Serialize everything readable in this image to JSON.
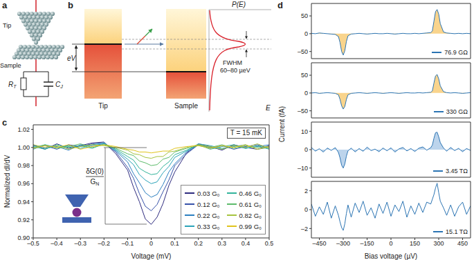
{
  "chart_data": [
    {
      "type": "line",
      "panel": "c",
      "x_label": "Voltage (mV)",
      "y_label": "Normalized dI/dV",
      "x": [
        -0.5,
        -0.45,
        -0.4,
        -0.35,
        -0.3,
        -0.25,
        -0.2,
        -0.15,
        -0.1,
        -0.075,
        -0.05,
        -0.025,
        0,
        0.025,
        0.05,
        0.075,
        0.1,
        0.15,
        0.2,
        0.25,
        0.3,
        0.35,
        0.4,
        0.45,
        0.5
      ],
      "xlim": [
        -0.5,
        0.5
      ],
      "xticks": [
        {
          "value": -0.5,
          "label": "–0.5"
        },
        {
          "value": -0.4,
          "label": "–0.4"
        },
        {
          "value": -0.3,
          "label": "–0.3"
        },
        {
          "value": -0.2,
          "label": "–0.2"
        },
        {
          "value": -0.1,
          "label": "–0.1"
        },
        0,
        0.1,
        0.2,
        0.3,
        0.4,
        0.5
      ],
      "ylim": [
        0.9,
        1.025
      ],
      "yticks": [
        {
          "value": 0.9,
          "label": "0.90"
        },
        0.92,
        0.94,
        0.96,
        0.98,
        {
          "value": 1,
          "label": "1.00"
        },
        1.02
      ],
      "legend": "lower right",
      "annotations": {
        "temperature": "T = 15 mK",
        "depth_numerator": "δG(0)",
        "depth_denominator": "G",
        "depth_denominator_subscript": "N"
      },
      "series": [
        {
          "name": "0.03 G₀",
          "color": "#2d2a7e",
          "values": [
            1.003,
            0.998,
            1.004,
            0.999,
            1.002,
            1.005,
            1.006,
            0.993,
            0.975,
            0.956,
            0.94,
            0.921,
            0.915,
            0.923,
            0.938,
            0.958,
            0.973,
            0.994,
            1.004,
            1.001,
            0.997,
            1.003,
            1.0,
            0.998,
            1.002
          ]
        },
        {
          "name": "0.12 G₀",
          "color": "#3651a8",
          "values": [
            0.999,
            1.002,
            0.998,
            1.003,
            1.001,
            1.004,
            1.005,
            0.995,
            0.978,
            0.966,
            0.949,
            0.935,
            0.93,
            0.937,
            0.951,
            0.964,
            0.98,
            0.993,
            1.003,
            0.999,
            1.002,
            0.998,
            1.001,
            1.003,
            0.999
          ]
        },
        {
          "name": "0.22 G₀",
          "color": "#2c7fc0",
          "values": [
            1.002,
            0.999,
            1.001,
            0.997,
            1.003,
            1.002,
            1.004,
            0.996,
            0.984,
            0.971,
            0.961,
            0.95,
            0.945,
            0.948,
            0.959,
            0.973,
            0.982,
            0.995,
            1.003,
            1.0,
            0.998,
            1.002,
            0.999,
            1.001,
            1.003
          ]
        },
        {
          "name": "0.33 G₀",
          "color": "#2aa3b8",
          "values": [
            0.998,
            1.003,
            1.0,
            1.002,
            0.999,
            1.003,
            1.005,
            0.997,
            0.987,
            0.981,
            0.97,
            0.964,
            0.96,
            0.962,
            0.972,
            0.979,
            0.989,
            0.996,
            1.004,
            1.002,
            0.999,
            1.001,
            1.003,
            0.998,
            1.0
          ]
        },
        {
          "name": "0.46 G₀",
          "color": "#31b39a",
          "values": [
            1.001,
            0.998,
            1.003,
            1.0,
            1.002,
            0.999,
            1.004,
            0.998,
            0.99,
            0.986,
            0.977,
            0.973,
            0.97,
            0.971,
            0.979,
            0.984,
            0.992,
            0.997,
            1.003,
            0.998,
            1.001,
            1.003,
            0.999,
            1.002,
            0.998
          ]
        },
        {
          "name": "0.61 G₀",
          "color": "#5cbb6a",
          "values": [
            1.0,
            1.003,
            0.999,
            1.001,
            1.004,
            1.0,
            1.003,
            0.999,
            0.993,
            0.991,
            0.985,
            0.983,
            0.98,
            0.981,
            0.987,
            0.989,
            0.995,
            0.999,
            1.002,
            1.0,
            1.003,
            0.999,
            1.002,
            1.0,
            1.001
          ]
        },
        {
          "name": "0.82 G₀",
          "color": "#a6c33d",
          "values": [
            1.003,
            1.0,
            1.002,
            0.998,
            1.001,
            1.003,
            1.002,
            1.0,
            0.997,
            0.993,
            0.992,
            0.989,
            0.988,
            0.99,
            0.99,
            0.995,
            0.996,
            1.0,
            1.003,
            1.001,
            0.998,
            1.002,
            1.0,
            1.004,
            0.999
          ]
        },
        {
          "name": "0.99 G₀",
          "color": "#e0c31a",
          "values": [
            0.999,
            1.002,
            1.0,
            1.003,
            0.998,
            1.001,
            1.003,
            1.001,
            0.998,
            0.997,
            0.995,
            0.995,
            0.994,
            0.995,
            0.996,
            0.996,
            0.999,
            1.001,
            1.002,
            0.999,
            1.002,
            1.0,
            1.003,
            0.998,
            1.001
          ]
        }
      ]
    },
    {
      "type": "area",
      "panel": "d",
      "y_label": "Current (fA)",
      "tick_labels": "y",
      "legend": "lower right",
      "x": [
        -500,
        -475,
        -450,
        -425,
        -400,
        -375,
        -350,
        -330,
        -320,
        -310,
        -300,
        -290,
        -280,
        -270,
        -250,
        -225,
        -200,
        -175,
        -150,
        -125,
        -100,
        -75,
        -50,
        -25,
        0,
        25,
        50,
        75,
        100,
        125,
        150,
        175,
        200,
        225,
        250,
        260,
        270,
        280,
        290,
        300,
        310,
        330,
        350,
        375,
        400,
        425,
        450,
        475,
        500
      ],
      "xlim": [
        -500,
        500
      ],
      "xticks": [
        {
          "value": -450,
          "label": "–450"
        },
        {
          "value": -300,
          "label": "–300"
        },
        {
          "value": -150,
          "label": "–150"
        },
        0,
        150,
        300,
        450
      ],
      "ylim": [
        -70,
        85
      ],
      "yticks": [
        {
          "value": -50,
          "label": "–50"
        },
        0,
        50
      ],
      "series": [
        {
          "name": "76.9 GΩ",
          "color": "#2b74b3",
          "values": [
            1,
            0,
            2,
            1,
            0,
            -1,
            -2,
            -8,
            -25,
            -50,
            -60,
            -48,
            -22,
            -6,
            -1,
            0,
            1,
            0,
            -1,
            0,
            1,
            0,
            0,
            1,
            0,
            -1,
            0,
            1,
            0,
            0,
            1,
            0,
            1,
            2,
            3,
            8,
            35,
            62,
            68,
            55,
            28,
            5,
            2,
            1,
            0,
            1,
            0,
            1,
            0
          ]
        }
      ]
    },
    {
      "type": "area",
      "tick_labels": "y",
      "legend": "lower right",
      "x": [
        -500,
        -475,
        -450,
        -425,
        -400,
        -375,
        -350,
        -330,
        -320,
        -310,
        -300,
        -290,
        -280,
        -270,
        -250,
        -225,
        -200,
        -175,
        -150,
        -125,
        -100,
        -75,
        -50,
        -25,
        0,
        25,
        50,
        75,
        100,
        125,
        150,
        175,
        200,
        225,
        250,
        260,
        270,
        280,
        290,
        300,
        310,
        330,
        350,
        375,
        400,
        425,
        450,
        475,
        500
      ],
      "xlim": [
        -500,
        500
      ],
      "xticks": [
        {
          "value": -450,
          "label": "–450"
        },
        {
          "value": -300,
          "label": "–300"
        },
        {
          "value": -150,
          "label": "–150"
        },
        0,
        150,
        300,
        450
      ],
      "ylim": [
        -70,
        85
      ],
      "yticks": [
        {
          "value": -50,
          "label": "–50"
        },
        0,
        50
      ],
      "series": [
        {
          "name": "330 GΩ",
          "color": "#2b74b3",
          "values": [
            0,
            1,
            -1,
            0,
            1,
            0,
            -1,
            -5,
            -18,
            -36,
            -45,
            -38,
            -18,
            -5,
            -1,
            0,
            1,
            0,
            -1,
            0,
            1,
            0,
            -1,
            0,
            1,
            0,
            -1,
            0,
            1,
            0,
            0,
            1,
            0,
            1,
            2,
            6,
            28,
            48,
            52,
            40,
            20,
            4,
            1,
            0,
            1,
            0,
            -1,
            0,
            1
          ]
        }
      ]
    },
    {
      "type": "area",
      "tick_labels": "y",
      "legend": "lower right",
      "x": [
        -500,
        -475,
        -450,
        -425,
        -400,
        -375,
        -350,
        -330,
        -320,
        -310,
        -300,
        -290,
        -280,
        -270,
        -250,
        -225,
        -200,
        -175,
        -150,
        -125,
        -100,
        -75,
        -50,
        -25,
        0,
        25,
        50,
        75,
        100,
        125,
        150,
        175,
        200,
        225,
        250,
        260,
        270,
        280,
        290,
        300,
        310,
        330,
        350,
        375,
        400,
        425,
        450,
        475,
        500
      ],
      "xlim": [
        -500,
        500
      ],
      "xticks": [
        {
          "value": -450,
          "label": "–450"
        },
        {
          "value": -300,
          "label": "–300"
        },
        {
          "value": -150,
          "label": "–150"
        },
        0,
        150,
        300,
        450
      ],
      "ylim": [
        -15,
        15
      ],
      "yticks": [
        {
          "value": -10,
          "label": "–10"
        },
        0,
        10
      ],
      "series": [
        {
          "name": "3.45 TΩ",
          "color": "#2b74b3",
          "values": [
            1.2,
            -0.8,
            0.5,
            -1.3,
            0.9,
            -0.4,
            1.1,
            -1.5,
            -4.5,
            -8.5,
            -10,
            -7.8,
            -3.5,
            -0.6,
            0.8,
            -1.2,
            0.6,
            -0.9,
            1.4,
            -0.5,
            0.3,
            -1.1,
            0.9,
            -0.6,
            1.0,
            -1.3,
            0.4,
            1.2,
            -0.7,
            0.6,
            -1.0,
            0.8,
            1.5,
            -0.3,
            1.1,
            2.5,
            6.2,
            9.2,
            9.5,
            7.0,
            3.8,
            0.9,
            -0.8,
            1.2,
            -0.5,
            0.7,
            -1.1,
            0.6,
            -0.4
          ]
        }
      ]
    },
    {
      "type": "line",
      "x_label": "Bias voltage (µV)",
      "legend": "lower right",
      "x": [
        -500,
        -475,
        -450,
        -425,
        -400,
        -375,
        -350,
        -330,
        -320,
        -310,
        -300,
        -290,
        -280,
        -270,
        -250,
        -225,
        -200,
        -175,
        -150,
        -125,
        -100,
        -75,
        -50,
        -25,
        0,
        25,
        50,
        75,
        100,
        125,
        150,
        175,
        200,
        225,
        250,
        260,
        270,
        280,
        290,
        300,
        310,
        330,
        350,
        375,
        400,
        425,
        450,
        475,
        500
      ],
      "xlim": [
        -500,
        500
      ],
      "xticks": [
        {
          "value": -450,
          "label": "–450"
        },
        {
          "value": -300,
          "label": "–300"
        },
        {
          "value": -150,
          "label": "–150"
        },
        0,
        150,
        300,
        450
      ],
      "ylim": [
        -3,
        3
      ],
      "yticks": [
        {
          "value": -2,
          "label": "–2"
        },
        0,
        2
      ],
      "series": [
        {
          "name": "15.1 TΩ",
          "color": "#2b74b3",
          "values": [
            0.6,
            -0.7,
            0.3,
            -0.5,
            0.8,
            -0.9,
            0.4,
            -0.6,
            -1.3,
            -1.9,
            -2.2,
            -1.5,
            -0.4,
            0.5,
            -0.8,
            0.7,
            -0.3,
            0.9,
            -0.6,
            0.2,
            -0.9,
            0.6,
            -0.4,
            0.8,
            -0.7,
            0.5,
            -0.2,
            0.9,
            -0.8,
            0.4,
            -0.5,
            0.7,
            -0.3,
            0.8,
            0.6,
            1.1,
            1.6,
            2.3,
            2.8,
            1.8,
            0.9,
            0.2,
            -0.6,
            0.5,
            -0.7,
            0.3,
            0.8,
            -0.5,
            0.4
          ]
        }
      ]
    }
  ],
  "diagrams": {
    "a": {
      "panel": "a",
      "tip": "Tip",
      "sample": "Sample",
      "resistor": {
        "symbol": "R",
        "subscript": "T"
      },
      "capacitor": {
        "symbol": "C",
        "subscript": "J"
      }
    },
    "b": {
      "panel": "b",
      "tip": "Tip",
      "sample": "Sample",
      "bias": "eV",
      "distribution": "P(E)",
      "width_name": "FWHM",
      "width_value": "60–80 µeV",
      "energy_axis": "E"
    }
  }
}
